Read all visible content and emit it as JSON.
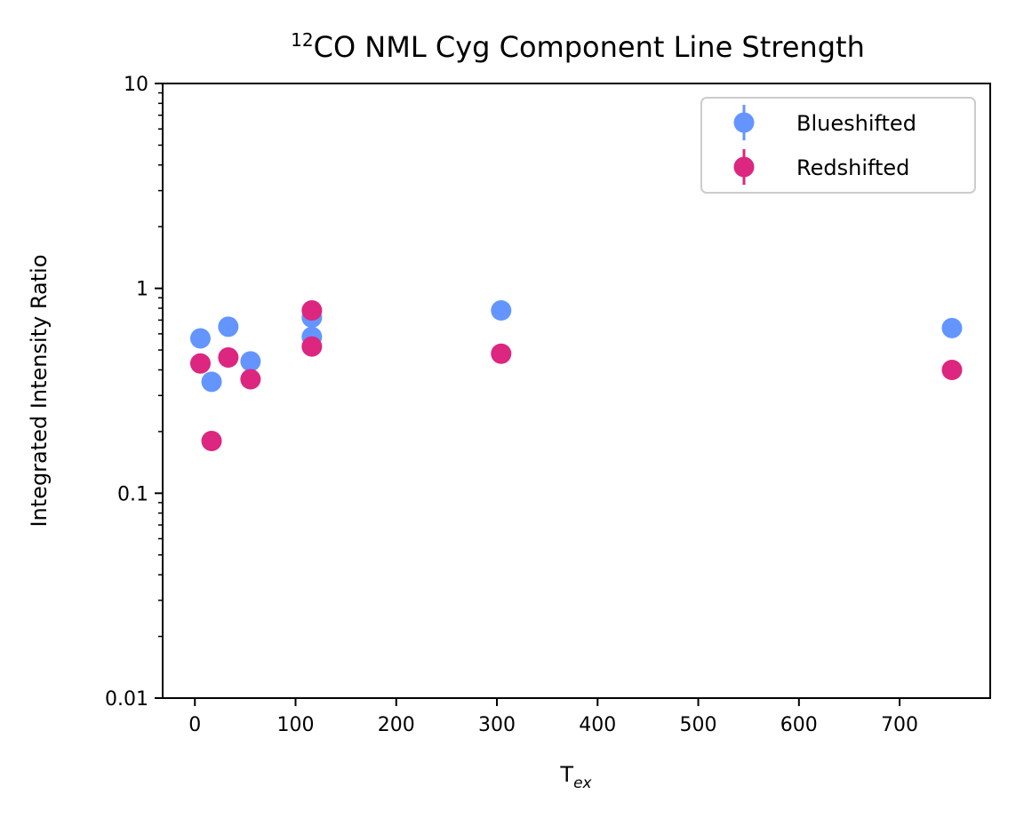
{
  "chart_data": {
    "type": "scatter",
    "title": "CO NML Cyg Component Line Strength",
    "title_superscript": "12",
    "xlabel": "T",
    "xlabel_subscript": "ex",
    "ylabel": "Integrated Intensity Ratio",
    "yscale": "log",
    "xlim": [
      -32,
      790
    ],
    "ylim": [
      0.01,
      10
    ],
    "xticks": [
      0,
      100,
      200,
      300,
      400,
      500,
      600,
      700
    ],
    "xtick_labels": [
      "0",
      "100",
      "200",
      "300",
      "400",
      "500",
      "600",
      "700"
    ],
    "yticks": [
      0.01,
      0.1,
      1,
      10
    ],
    "ytick_labels": [
      "0.01",
      "0.1",
      "1",
      "10"
    ],
    "grid": false,
    "legend_position": "top-right",
    "series": [
      {
        "name": "Blueshifted",
        "color": "#6495ff",
        "x": [
          5.5,
          16.6,
          33.2,
          55.3,
          116.2,
          116.2,
          304.2,
          752.0
        ],
        "y": [
          0.57,
          0.35,
          0.65,
          0.44,
          0.72,
          0.58,
          0.78,
          0.64
        ]
      },
      {
        "name": "Redshifted",
        "color": "#dc267f",
        "x": [
          5.5,
          16.6,
          33.2,
          55.3,
          116.2,
          116.2,
          304.2,
          752.0
        ],
        "y": [
          0.43,
          0.18,
          0.46,
          0.36,
          0.78,
          0.52,
          0.48,
          0.4
        ]
      }
    ]
  }
}
